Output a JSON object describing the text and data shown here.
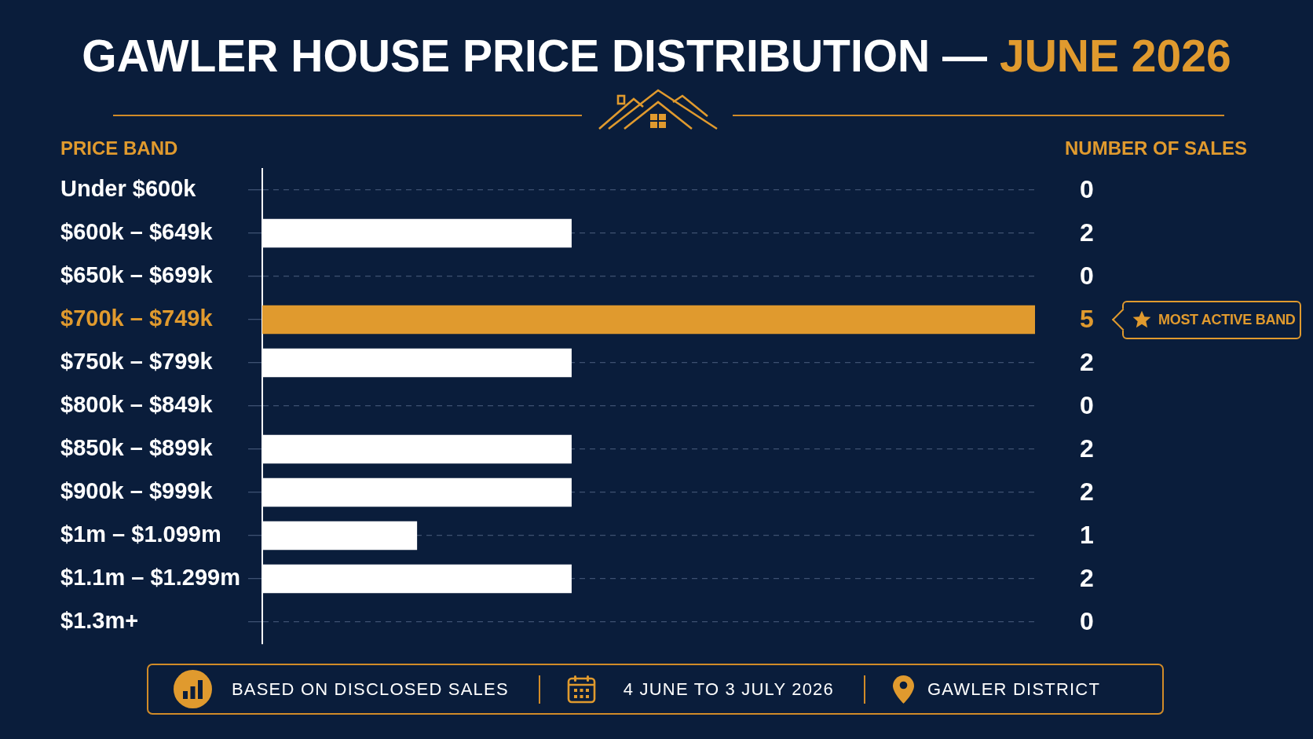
{
  "chart_data": {
    "type": "bar",
    "orientation": "horizontal",
    "title": "GAWLER HOUSE PRICE DISTRIBUTION — JUNE 2026",
    "ylabel": "PRICE BAND",
    "xlabel": "NUMBER OF SALES",
    "categories": [
      "Under $600k",
      "$600k – $649k",
      "$650k – $699k",
      "$700k – $749k",
      "$750k – $799k",
      "$800k – $849k",
      "$850k – $899k",
      "$900k – $999k",
      "$1m – $1.099m",
      "$1.1m – $1.299m",
      "$1.3m+"
    ],
    "values": [
      0,
      2,
      0,
      5,
      2,
      0,
      2,
      2,
      1,
      2,
      0
    ],
    "colors": [
      "#ffffff",
      "#ffffff",
      "#ffffff",
      "#e09a2e",
      "#ffffff",
      "#ffffff",
      "#ffffff",
      "#ffffff",
      "#ffffff",
      "#ffffff",
      "#ffffff"
    ],
    "data_labels": true,
    "grid": "y",
    "legend": false,
    "tick_labels": "y",
    "annotations": [
      "MOST ACTIVE BAND",
      "BASED ON DISCLOSED SALES",
      "4 JUNE TO 3 JULY 2026",
      "GAWLER DISTRICT"
    ]
  }
}
